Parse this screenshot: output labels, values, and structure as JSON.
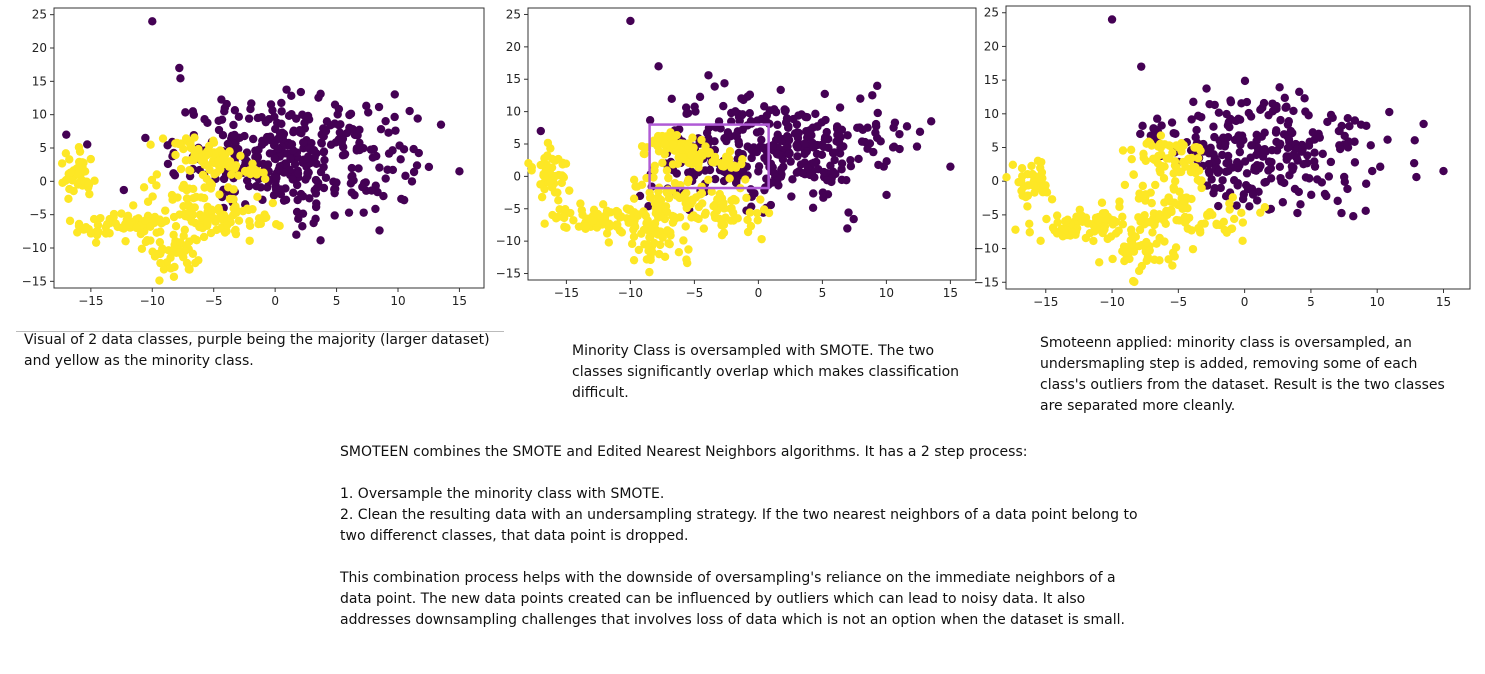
{
  "colors": {
    "majority": "#440154",
    "minority": "#fde725",
    "box": "#b05bd6"
  },
  "chart_data": [
    {
      "type": "scatter",
      "xlim": [
        -18,
        17
      ],
      "ylim": [
        -16,
        26
      ],
      "xticks": [
        -15,
        -10,
        -5,
        0,
        5,
        10,
        15
      ],
      "yticks": [
        -15,
        -10,
        -5,
        0,
        5,
        10,
        15,
        20,
        25
      ],
      "series": [
        {
          "color": "#440154",
          "spread": "wide",
          "outliers": [
            [
              -10,
              24
            ],
            [
              13.5,
              8.5
            ],
            [
              15,
              1.5
            ],
            [
              -7.8,
              17
            ],
            [
              -17,
              7
            ]
          ]
        },
        {
          "color": "#fde725",
          "spread": "original",
          "outliers": []
        }
      ]
    },
    {
      "type": "scatter",
      "xlim": [
        -18,
        17
      ],
      "ylim": [
        -16,
        26
      ],
      "xticks": [
        -15,
        -10,
        -5,
        0,
        5,
        10,
        15
      ],
      "yticks": [
        -15,
        -10,
        -5,
        0,
        5,
        10,
        15,
        20,
        25
      ],
      "highlight_box": {
        "x0": -8.5,
        "x1": 0.8,
        "y0": -1.8,
        "y1": 8
      },
      "series": [
        {
          "color": "#440154",
          "spread": "wide",
          "outliers": [
            [
              -10,
              24
            ],
            [
              13.5,
              8.5
            ],
            [
              15,
              1.5
            ],
            [
              -7.8,
              17
            ],
            [
              -17,
              7
            ]
          ]
        },
        {
          "color": "#fde725",
          "spread": "smote",
          "outliers": []
        }
      ]
    },
    {
      "type": "scatter",
      "xlim": [
        -18,
        17
      ],
      "ylim": [
        -16,
        26
      ],
      "xticks": [
        -15,
        -10,
        -5,
        0,
        5,
        10,
        15
      ],
      "yticks": [
        -15,
        -10,
        -5,
        0,
        5,
        10,
        15,
        20,
        25
      ],
      "series": [
        {
          "color": "#440154",
          "spread": "cleaned",
          "outliers": [
            [
              -10,
              24
            ],
            [
              13.5,
              8.5
            ],
            [
              15,
              1.5
            ],
            [
              -7.8,
              17
            ]
          ]
        },
        {
          "color": "#fde725",
          "spread": "cleaned",
          "outliers": []
        }
      ]
    }
  ],
  "captions": {
    "c1": "Visual of 2 data classes, purple being the majority (larger dataset) and yellow as the minority class.",
    "c2": "Minority Class is oversampled with SMOTE.  The two classes significantly overlap which makes classification difficult.",
    "c3": "Smoteenn applied: minority class is oversampled, an undersmapling step is added, removing some of each class's outliers from the dataset.  Result is the two classes are separated more cleanly."
  },
  "body": {
    "intro": "SMOTEEN combines the SMOTE and Edited Nearest Neighbors algorithms.  It has a 2 step process:",
    "step1": " 1. Oversample the minority class with SMOTE.",
    "step2": " 2. Clean the resulting data with an undersampling strategy.  If the two nearest neighbors of a data point belong to two differenct classes, that data point is dropped.",
    "closing": "This combination process helps with the downside of oversampling's reliance on the immediate neighbors of a data point. The new data points created can be influenced by outliers which can lead to noisy data.  It also addresses downsampling challenges that involves loss of data which is not an option when the dataset is small."
  }
}
